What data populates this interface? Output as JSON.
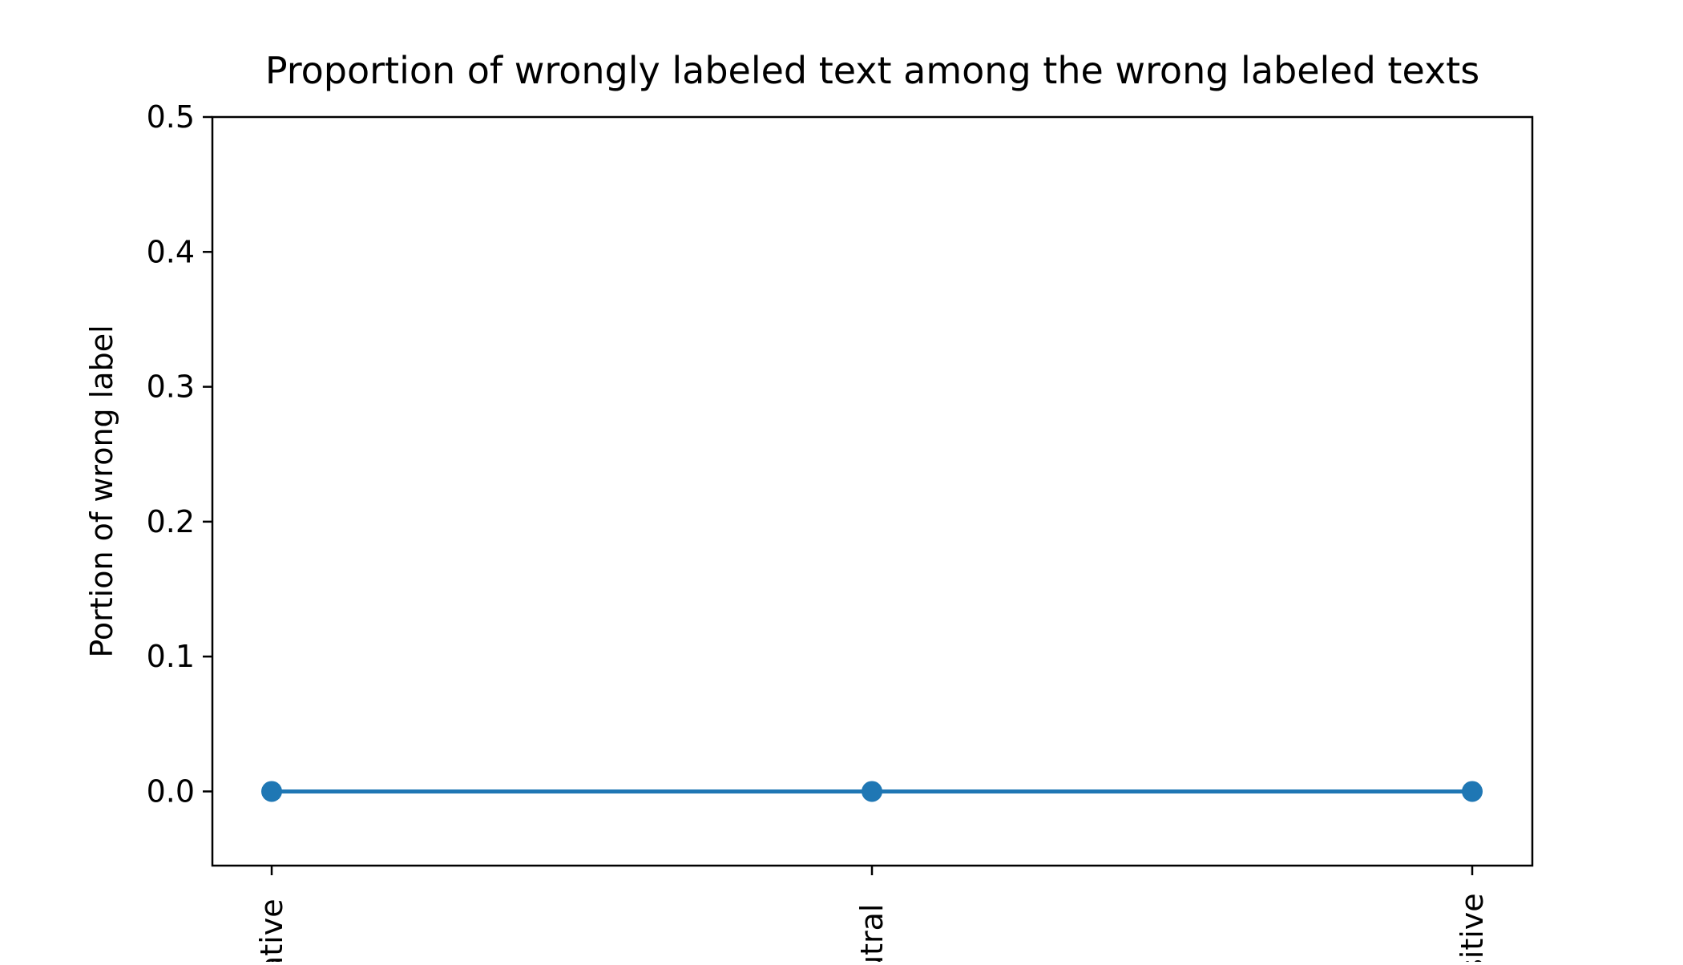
{
  "chart_data": {
    "type": "line",
    "title": "Proportion of wrongly labeled text among the wrong labeled texts",
    "xlabel": "",
    "ylabel": "Portion of wrong label",
    "categories": [
      "Negative",
      "Neutral",
      "Positive"
    ],
    "visible_tick_text": [
      "ative",
      "utral",
      "sitive"
    ],
    "series": [
      {
        "values": [
          0.0,
          0.0,
          0.0
        ]
      }
    ],
    "ylim": [
      -0.055,
      0.5
    ],
    "yticks": [
      0.0,
      0.1,
      0.2,
      0.3,
      0.4,
      0.5
    ],
    "ytick_labels": [
      "0.0",
      "0.1",
      "0.2",
      "0.3",
      "0.4",
      "0.5"
    ],
    "grid": false,
    "legend": "none",
    "colors": {
      "series": "#1f77b4",
      "axes": "#000000"
    }
  }
}
